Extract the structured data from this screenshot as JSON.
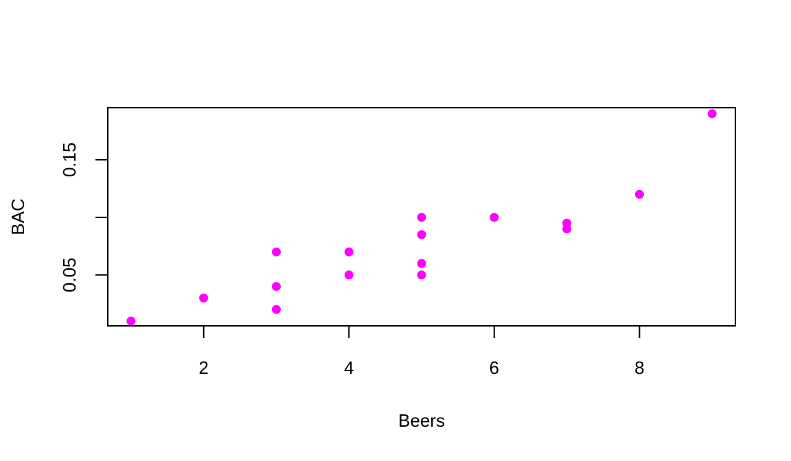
{
  "chart_data": {
    "type": "scatter",
    "title": "",
    "xlabel": "Beers",
    "ylabel": "BAC",
    "xlim": [
      0.68,
      9.32
    ],
    "ylim": [
      0.0058,
      0.1952
    ],
    "x_ticks": [
      2,
      4,
      6,
      8
    ],
    "x_tick_labels": [
      "2",
      "4",
      "6",
      "8"
    ],
    "y_ticks": [
      0.05,
      0.1,
      0.15
    ],
    "y_tick_labels": [
      "0.05",
      "",
      "0.15"
    ],
    "grid": false,
    "point_color": "#FF00FF",
    "points": [
      {
        "x": 1,
        "y": 0.01
      },
      {
        "x": 2,
        "y": 0.03
      },
      {
        "x": 3,
        "y": 0.02
      },
      {
        "x": 3,
        "y": 0.04
      },
      {
        "x": 3,
        "y": 0.07
      },
      {
        "x": 4,
        "y": 0.05
      },
      {
        "x": 4,
        "y": 0.07
      },
      {
        "x": 5,
        "y": 0.05
      },
      {
        "x": 5,
        "y": 0.06
      },
      {
        "x": 5,
        "y": 0.085
      },
      {
        "x": 5,
        "y": 0.1
      },
      {
        "x": 6,
        "y": 0.1
      },
      {
        "x": 7,
        "y": 0.09
      },
      {
        "x": 7,
        "y": 0.095
      },
      {
        "x": 8,
        "y": 0.12
      },
      {
        "x": 9,
        "y": 0.19
      }
    ]
  }
}
